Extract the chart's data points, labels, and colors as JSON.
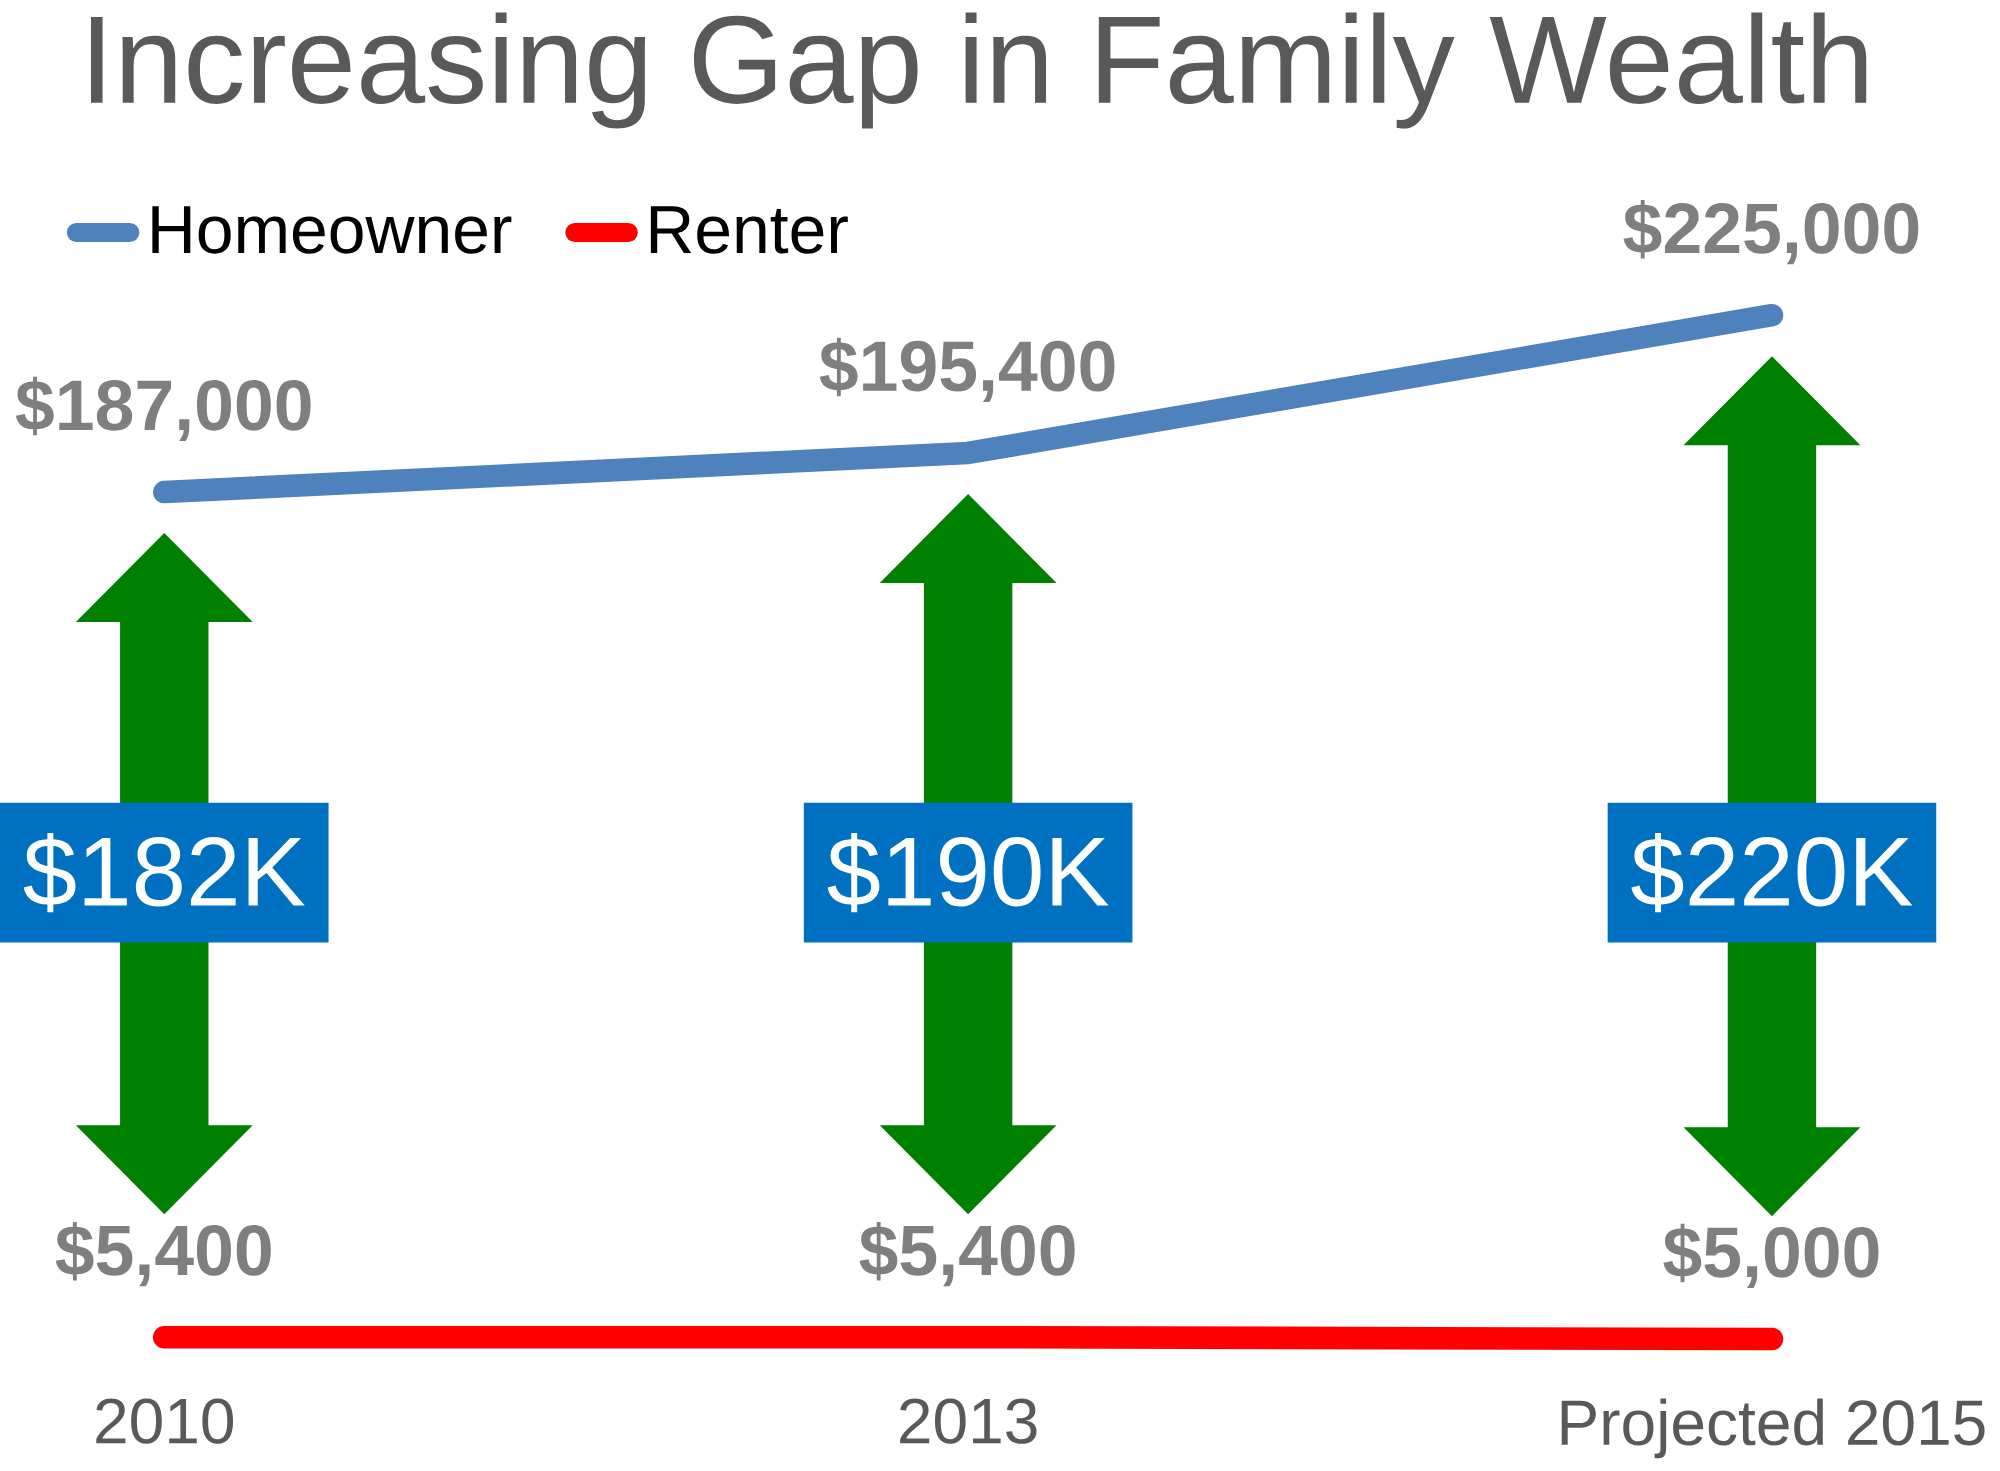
{
  "chart_data": {
    "type": "line",
    "title": "Increasing Gap in Family Wealth",
    "categories": [
      "2010",
      "2013",
      "Projected 2015"
    ],
    "series": [
      {
        "name": "Homeowner",
        "color": "#4f81bd",
        "values": [
          187000,
          195400,
          225000
        ],
        "value_labels": [
          "$187,000",
          "$195,400",
          "$225,000"
        ]
      },
      {
        "name": "Renter",
        "color": "#ff0000",
        "values": [
          5400,
          5400,
          5000
        ],
        "value_labels": [
          "$5,400",
          "$5,400",
          "$5,000"
        ]
      }
    ],
    "annotations": [
      "$182K",
      "$190K",
      "$220K"
    ],
    "legend": "top left"
  }
}
